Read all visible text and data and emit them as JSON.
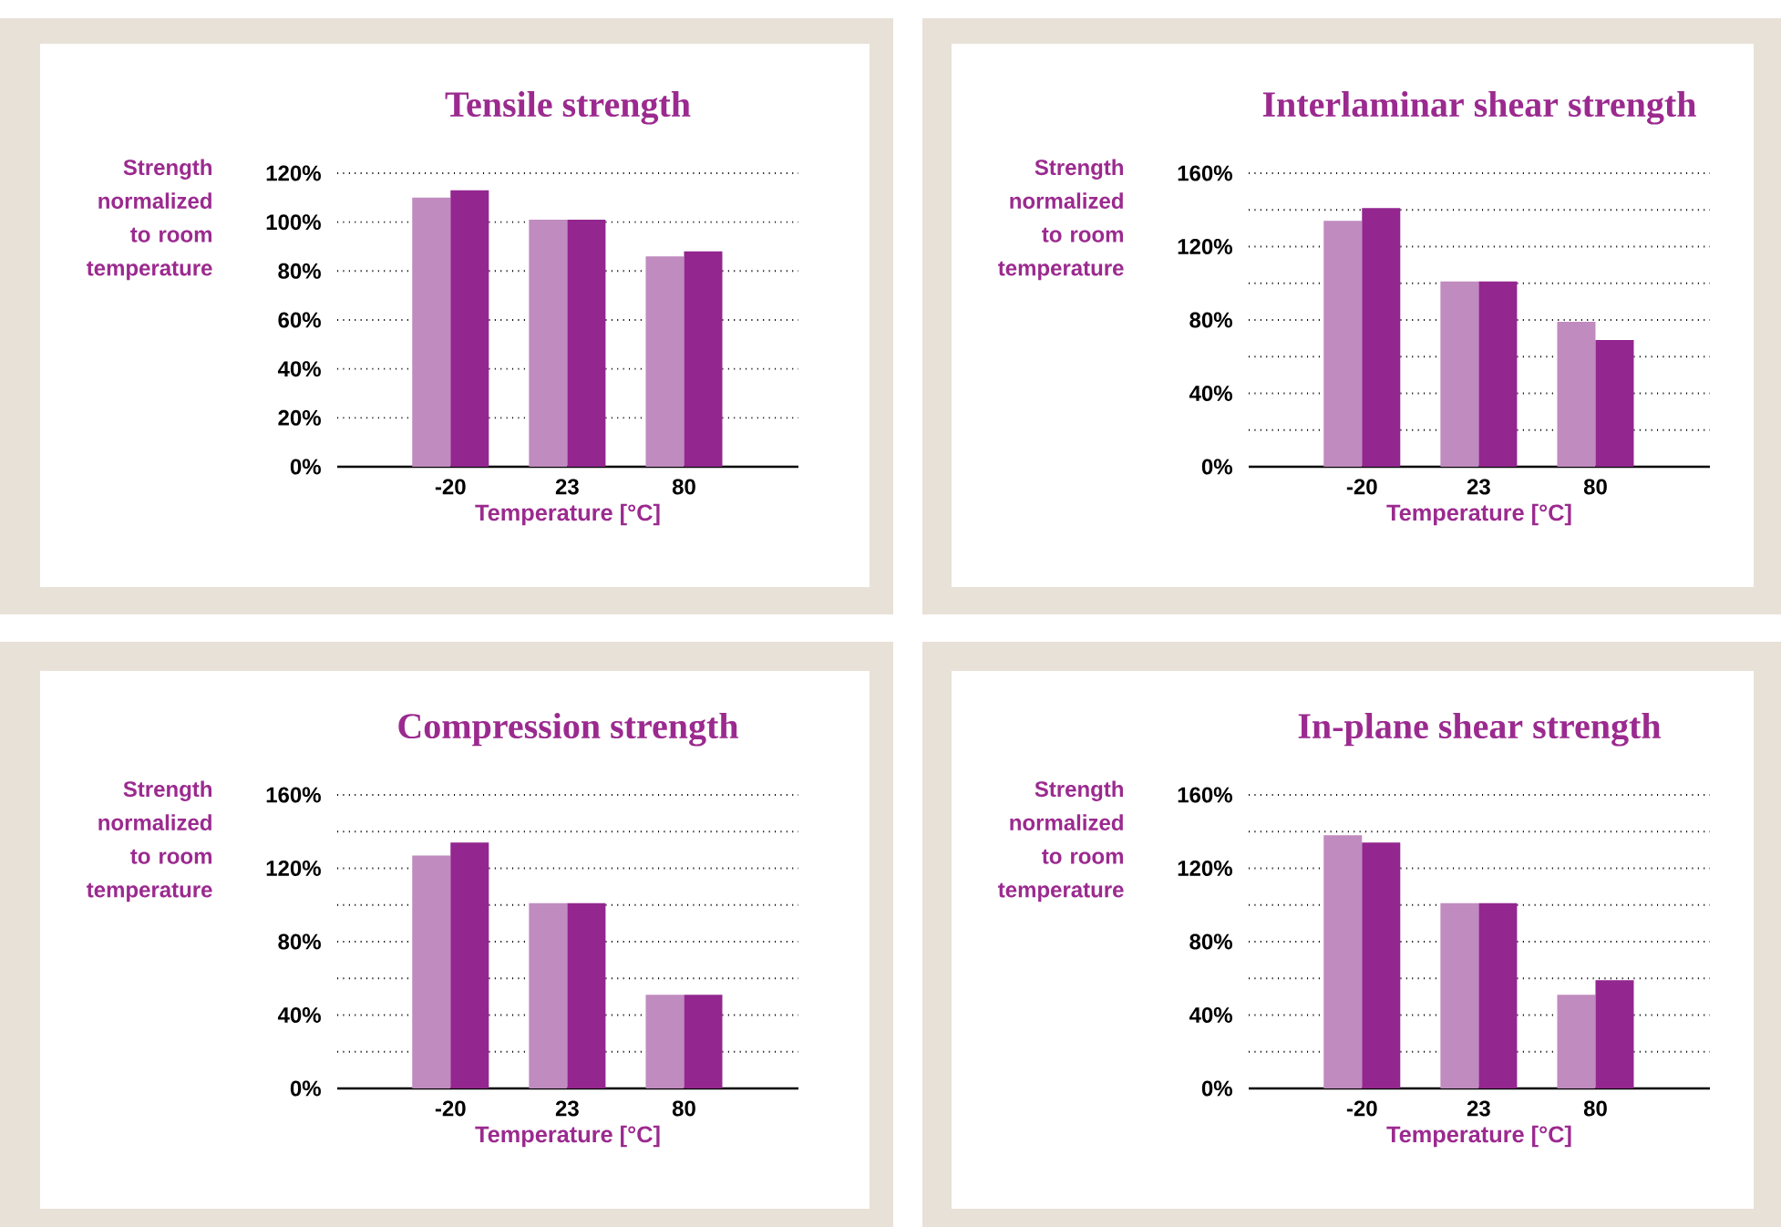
{
  "chart_data": [
    {
      "type": "bar",
      "title": "Tensile strength",
      "xlabel": "Temperature [°C]",
      "ylabel": "Strength normalized to room temperature",
      "categories": [
        "-20",
        "23",
        "80"
      ],
      "series": [
        {
          "color": "#c08bbf",
          "values": [
            110,
            101,
            86
          ]
        },
        {
          "color": "#93268f",
          "values": [
            113,
            101,
            88
          ]
        }
      ],
      "ylim": [
        0,
        120
      ],
      "yticks": [
        {
          "value": 0,
          "label": "0%"
        },
        {
          "value": 20,
          "label": "20%"
        },
        {
          "value": 40,
          "label": "40%"
        },
        {
          "value": 60,
          "label": "60%"
        },
        {
          "value": 80,
          "label": "80%"
        },
        {
          "value": 100,
          "label": "100%"
        },
        {
          "value": 120,
          "label": "120%"
        }
      ],
      "grid": "y"
    },
    {
      "type": "bar",
      "title": "Interlaminar shear strength",
      "xlabel": "Temperature [°C]",
      "ylabel": "Strength normalized to room temperature",
      "categories": [
        "-20",
        "23",
        "80"
      ],
      "series": [
        {
          "color": "#c08bbf",
          "values": [
            134,
            101,
            79
          ]
        },
        {
          "color": "#93268f",
          "values": [
            141,
            101,
            69
          ]
        }
      ],
      "ylim": [
        0,
        160
      ],
      "yticks": [
        {
          "value": 0,
          "label": "0%"
        },
        {
          "value": 20,
          "label": null
        },
        {
          "value": 40,
          "label": "40%"
        },
        {
          "value": 60,
          "label": null
        },
        {
          "value": 80,
          "label": "80%"
        },
        {
          "value": 100,
          "label": null
        },
        {
          "value": 120,
          "label": "120%"
        },
        {
          "value": 140,
          "label": null
        },
        {
          "value": 160,
          "label": "160%"
        }
      ],
      "grid": "y"
    },
    {
      "type": "bar",
      "title": "Compression strength",
      "xlabel": "Temperature [°C]",
      "ylabel": "Strength normalized to room temperature",
      "categories": [
        "-20",
        "23",
        "80"
      ],
      "series": [
        {
          "color": "#c08bbf",
          "values": [
            127,
            101,
            51
          ]
        },
        {
          "color": "#93268f",
          "values": [
            134,
            101,
            51
          ]
        }
      ],
      "ylim": [
        0,
        160
      ],
      "yticks": [
        {
          "value": 0,
          "label": "0%"
        },
        {
          "value": 20,
          "label": null
        },
        {
          "value": 40,
          "label": "40%"
        },
        {
          "value": 60,
          "label": null
        },
        {
          "value": 80,
          "label": "80%"
        },
        {
          "value": 100,
          "label": null
        },
        {
          "value": 120,
          "label": "120%"
        },
        {
          "value": 140,
          "label": null
        },
        {
          "value": 160,
          "label": "160%"
        }
      ],
      "grid": "y"
    },
    {
      "type": "bar",
      "title": "In-plane shear strength",
      "xlabel": "Temperature [°C]",
      "ylabel": "Strength normalized to room temperature",
      "categories": [
        "-20",
        "23",
        "80"
      ],
      "series": [
        {
          "color": "#c08bbf",
          "values": [
            138,
            101,
            51
          ]
        },
        {
          "color": "#93268f",
          "values": [
            134,
            101,
            59
          ]
        }
      ],
      "ylim": [
        0,
        160
      ],
      "yticks": [
        {
          "value": 0,
          "label": "0%"
        },
        {
          "value": 20,
          "label": null
        },
        {
          "value": 40,
          "label": "40%"
        },
        {
          "value": 60,
          "label": null
        },
        {
          "value": 80,
          "label": "80%"
        },
        {
          "value": 100,
          "label": null
        },
        {
          "value": 120,
          "label": "120%"
        },
        {
          "value": 140,
          "label": null
        },
        {
          "value": 160,
          "label": "160%"
        }
      ],
      "grid": "y"
    }
  ]
}
